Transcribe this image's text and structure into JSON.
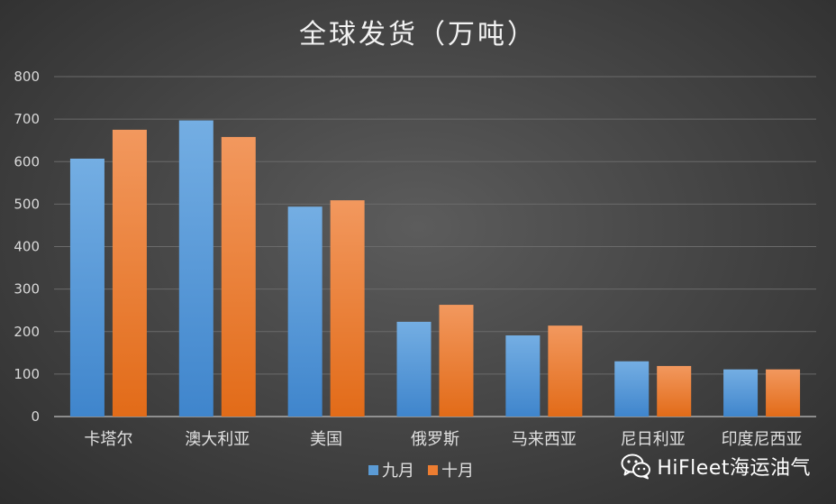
{
  "chart_data": {
    "type": "bar",
    "title": "全球发货（万吨）",
    "categories": [
      "卡塔尔",
      "澳大利亚",
      "美国",
      "俄罗斯",
      "马来西亚",
      "尼日利亚",
      "印度尼西亚"
    ],
    "series": [
      {
        "name": "九月",
        "color": "#5b9bd5",
        "values": [
          607,
          697,
          494,
          223,
          191,
          130,
          111
        ]
      },
      {
        "name": "十月",
        "color": "#ed7d31",
        "values": [
          675,
          658,
          509,
          263,
          214,
          119,
          111
        ]
      }
    ],
    "ylim": [
      0,
      800
    ],
    "yticks": [
      0,
      100,
      200,
      300,
      400,
      500,
      600,
      700,
      800
    ],
    "grid": true,
    "legend_position": "bottom"
  },
  "watermark": {
    "text": "HiFleet海运油气",
    "icon": "wechat-icon"
  }
}
